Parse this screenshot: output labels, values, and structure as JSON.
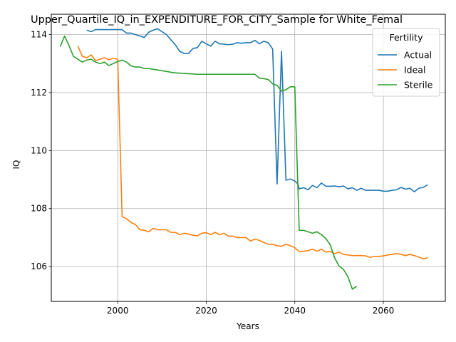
{
  "chart_data": {
    "type": "line",
    "title": "Upper_Quartile_IQ_in_EXPENDITURE_FOR_CITY_Sample for White_Femal",
    "xlabel": "Years",
    "ylabel": "IQ",
    "xlim": [
      1985,
      2074
    ],
    "ylim": [
      104.8,
      114.7
    ],
    "xticks": [
      2000,
      2020,
      2040,
      2060
    ],
    "yticks": [
      106,
      108,
      110,
      112,
      114
    ],
    "grid": true,
    "legend": {
      "title": "Fertility",
      "position": "upper right"
    },
    "series": [
      {
        "name": "Actual",
        "color": "#1f77b4",
        "points": [
          [
            1993,
            114.15
          ],
          [
            1994,
            114.1
          ],
          [
            1995,
            114.17
          ],
          [
            1996,
            114.17
          ],
          [
            1997,
            114.17
          ],
          [
            1998,
            114.17
          ],
          [
            1999,
            114.17
          ],
          [
            2000,
            114.17
          ],
          [
            2001,
            114.17
          ],
          [
            2002,
            114.05
          ],
          [
            2003,
            114.05
          ],
          [
            2004,
            114.0
          ],
          [
            2005,
            113.95
          ],
          [
            2006,
            113.9
          ],
          [
            2007,
            114.08
          ],
          [
            2008,
            114.15
          ],
          [
            2009,
            114.2
          ],
          [
            2010,
            114.1
          ],
          [
            2011,
            114.0
          ],
          [
            2012,
            113.82
          ],
          [
            2013,
            113.65
          ],
          [
            2014,
            113.42
          ],
          [
            2015,
            113.35
          ],
          [
            2016,
            113.35
          ],
          [
            2017,
            113.52
          ],
          [
            2018,
            113.55
          ],
          [
            2019,
            113.77
          ],
          [
            2020,
            113.68
          ],
          [
            2021,
            113.6
          ],
          [
            2022,
            113.77
          ],
          [
            2023,
            113.68
          ],
          [
            2024,
            113.67
          ],
          [
            2025,
            113.65
          ],
          [
            2026,
            113.67
          ],
          [
            2027,
            113.72
          ],
          [
            2028,
            113.7
          ],
          [
            2029,
            113.72
          ],
          [
            2030,
            113.72
          ],
          [
            2031,
            113.8
          ],
          [
            2032,
            113.68
          ],
          [
            2033,
            113.77
          ],
          [
            2034,
            113.72
          ],
          [
            2035,
            113.5
          ],
          [
            2036,
            108.85
          ],
          [
            2037,
            113.42
          ],
          [
            2038,
            108.98
          ],
          [
            2039,
            109.02
          ],
          [
            2040,
            108.95
          ],
          [
            2040.7,
            108.85
          ],
          [
            2041,
            108.68
          ],
          [
            2042,
            108.72
          ],
          [
            2043,
            108.65
          ],
          [
            2044,
            108.8
          ],
          [
            2045,
            108.72
          ],
          [
            2046,
            108.88
          ],
          [
            2047,
            108.77
          ],
          [
            2048,
            108.77
          ],
          [
            2049,
            108.78
          ],
          [
            2050,
            108.75
          ],
          [
            2051,
            108.78
          ],
          [
            2052,
            108.68
          ],
          [
            2053,
            108.72
          ],
          [
            2054,
            108.63
          ],
          [
            2055,
            108.7
          ],
          [
            2056,
            108.63
          ],
          [
            2057,
            108.63
          ],
          [
            2058,
            108.63
          ],
          [
            2059,
            108.63
          ],
          [
            2060,
            108.6
          ],
          [
            2061,
            108.6
          ],
          [
            2062,
            108.63
          ],
          [
            2063,
            108.65
          ],
          [
            2064,
            108.73
          ],
          [
            2065,
            108.67
          ],
          [
            2066,
            108.7
          ],
          [
            2067,
            108.58
          ],
          [
            2068,
            108.7
          ],
          [
            2069,
            108.73
          ],
          [
            2070,
            108.82
          ]
        ]
      },
      {
        "name": "Ideal",
        "color": "#ff7f0e",
        "points": [
          [
            1991,
            113.6
          ],
          [
            1992,
            113.25
          ],
          [
            1993,
            113.2
          ],
          [
            1994,
            113.3
          ],
          [
            1995,
            113.1
          ],
          [
            1996,
            113.15
          ],
          [
            1997,
            113.2
          ],
          [
            1998,
            113.13
          ],
          [
            1999,
            113.18
          ],
          [
            2000,
            113.15
          ],
          [
            2001,
            107.72
          ],
          [
            2002,
            107.65
          ],
          [
            2003,
            107.52
          ],
          [
            2004,
            107.45
          ],
          [
            2005,
            107.27
          ],
          [
            2006,
            107.25
          ],
          [
            2007,
            107.2
          ],
          [
            2008,
            107.32
          ],
          [
            2009,
            107.27
          ],
          [
            2010,
            107.27
          ],
          [
            2011,
            107.27
          ],
          [
            2012,
            107.18
          ],
          [
            2013,
            107.18
          ],
          [
            2014,
            107.1
          ],
          [
            2015,
            107.15
          ],
          [
            2016,
            107.12
          ],
          [
            2017,
            107.08
          ],
          [
            2018,
            107.06
          ],
          [
            2019,
            107.15
          ],
          [
            2020,
            107.17
          ],
          [
            2021,
            107.1
          ],
          [
            2022,
            107.18
          ],
          [
            2023,
            107.1
          ],
          [
            2024,
            107.15
          ],
          [
            2025,
            107.05
          ],
          [
            2026,
            107.05
          ],
          [
            2027,
            107.0
          ],
          [
            2028,
            107.0
          ],
          [
            2029,
            107.0
          ],
          [
            2030,
            106.88
          ],
          [
            2031,
            106.95
          ],
          [
            2032,
            106.9
          ],
          [
            2033,
            106.83
          ],
          [
            2034,
            106.77
          ],
          [
            2035,
            106.77
          ],
          [
            2036,
            106.72
          ],
          [
            2037,
            106.7
          ],
          [
            2038,
            106.77
          ],
          [
            2039,
            106.72
          ],
          [
            2040,
            106.65
          ],
          [
            2041,
            106.52
          ],
          [
            2042,
            106.53
          ],
          [
            2043,
            106.55
          ],
          [
            2044,
            106.6
          ],
          [
            2045,
            106.53
          ],
          [
            2046,
            106.6
          ],
          [
            2047,
            106.5
          ],
          [
            2048,
            106.52
          ],
          [
            2049,
            106.45
          ],
          [
            2050,
            106.5
          ],
          [
            2051,
            106.42
          ],
          [
            2052,
            106.4
          ],
          [
            2053,
            106.38
          ],
          [
            2054,
            106.38
          ],
          [
            2055,
            106.38
          ],
          [
            2056,
            106.37
          ],
          [
            2057,
            106.32
          ],
          [
            2058,
            106.35
          ],
          [
            2059,
            106.35
          ],
          [
            2060,
            106.37
          ],
          [
            2061,
            106.4
          ],
          [
            2062,
            106.42
          ],
          [
            2063,
            106.45
          ],
          [
            2064,
            106.42
          ],
          [
            2065,
            106.38
          ],
          [
            2066,
            106.42
          ],
          [
            2067,
            106.38
          ],
          [
            2068,
            106.33
          ],
          [
            2069,
            106.27
          ],
          [
            2070,
            106.3
          ]
        ]
      },
      {
        "name": "Sterile",
        "color": "#2ca02c",
        "points": [
          [
            1987,
            113.58
          ],
          [
            1988,
            113.95
          ],
          [
            1989,
            113.62
          ],
          [
            1990,
            113.25
          ],
          [
            1991,
            113.15
          ],
          [
            1992,
            113.05
          ],
          [
            1993,
            113.12
          ],
          [
            1994,
            113.15
          ],
          [
            1995,
            113.05
          ],
          [
            1996,
            113.0
          ],
          [
            1997,
            113.05
          ],
          [
            1998,
            112.93
          ],
          [
            1999,
            113.0
          ],
          [
            2000,
            113.07
          ],
          [
            2001,
            113.12
          ],
          [
            2002,
            113.05
          ],
          [
            2003,
            112.92
          ],
          [
            2004,
            112.88
          ],
          [
            2005,
            112.88
          ],
          [
            2006,
            112.83
          ],
          [
            2007,
            112.83
          ],
          [
            2008,
            112.8
          ],
          [
            2009,
            112.78
          ],
          [
            2010,
            112.75
          ],
          [
            2011,
            112.73
          ],
          [
            2012,
            112.7
          ],
          [
            2013,
            112.68
          ],
          [
            2014,
            112.67
          ],
          [
            2015,
            112.66
          ],
          [
            2016,
            112.65
          ],
          [
            2017,
            112.64
          ],
          [
            2018,
            112.63
          ],
          [
            2019,
            112.63
          ],
          [
            2020,
            112.63
          ],
          [
            2021,
            112.63
          ],
          [
            2022,
            112.63
          ],
          [
            2023,
            112.63
          ],
          [
            2024,
            112.63
          ],
          [
            2025,
            112.63
          ],
          [
            2026,
            112.63
          ],
          [
            2027,
            112.63
          ],
          [
            2028,
            112.63
          ],
          [
            2029,
            112.63
          ],
          [
            2030,
            112.63
          ],
          [
            2031,
            112.63
          ],
          [
            2032,
            112.5
          ],
          [
            2033,
            112.48
          ],
          [
            2034,
            112.45
          ],
          [
            2035,
            112.3
          ],
          [
            2036,
            112.25
          ],
          [
            2037,
            112.05
          ],
          [
            2038,
            112.1
          ],
          [
            2039,
            112.2
          ],
          [
            2040,
            112.2
          ],
          [
            2041,
            107.25
          ],
          [
            2042,
            107.25
          ],
          [
            2043,
            107.2
          ],
          [
            2044,
            107.15
          ],
          [
            2045,
            107.2
          ],
          [
            2046,
            107.1
          ],
          [
            2047,
            106.97
          ],
          [
            2048,
            106.75
          ],
          [
            2049,
            106.3
          ],
          [
            2050,
            106.02
          ],
          [
            2051,
            105.9
          ],
          [
            2052,
            105.65
          ],
          [
            2053,
            105.22
          ],
          [
            2054,
            105.32
          ]
        ]
      }
    ]
  }
}
